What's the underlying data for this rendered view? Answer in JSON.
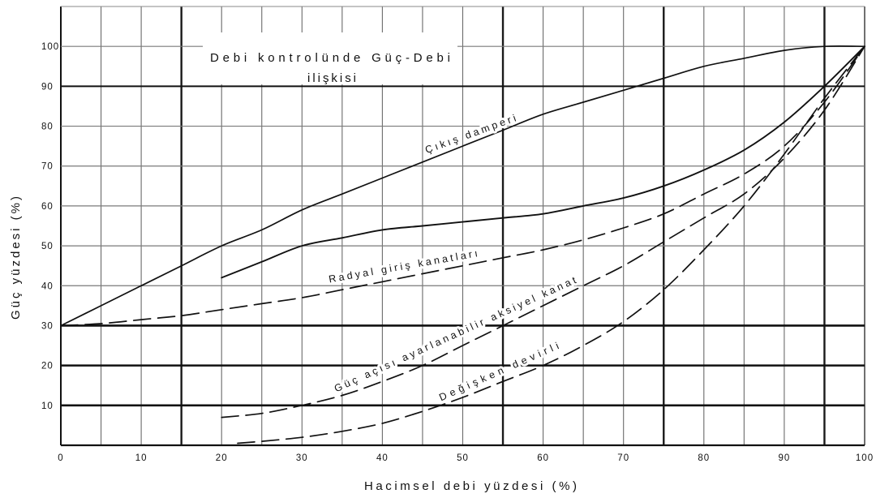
{
  "chart_data": {
    "type": "line",
    "title": [
      "Debi kontrolünde Güç-Debi",
      "ilişkisi"
    ],
    "xlabel": "Hacimsel debi yüzdesi (%)",
    "ylabel": "Güç yüzdesi (%)",
    "xlim": [
      0,
      100
    ],
    "ylim": [
      0,
      110
    ],
    "x_ticks": [
      0,
      10,
      20,
      30,
      40,
      50,
      60,
      70,
      80,
      90,
      100
    ],
    "y_ticks": [
      10,
      20,
      30,
      40,
      50,
      60,
      70,
      80,
      90,
      100
    ],
    "grid": true,
    "line_color": "#111111",
    "series": [
      {
        "name": "Çıkış damperi",
        "dashed": false,
        "x": [
          0,
          5,
          10,
          15,
          20,
          25,
          30,
          35,
          40,
          45,
          50,
          55,
          60,
          65,
          70,
          75,
          80,
          85,
          90,
          95,
          100
        ],
        "y": [
          30,
          35,
          40,
          45,
          50,
          54,
          59,
          63,
          67,
          71,
          75,
          79,
          83,
          86,
          89,
          92,
          95,
          97,
          99,
          100,
          100
        ]
      },
      {
        "dashed": false,
        "x": [
          20,
          25,
          30,
          35,
          40,
          45,
          50,
          55,
          60,
          65,
          70,
          75,
          80,
          85,
          90,
          95,
          100
        ],
        "y": [
          42,
          46,
          50,
          52,
          54,
          55,
          56,
          57,
          58,
          60,
          62,
          65,
          69,
          74,
          81,
          90,
          100
        ]
      },
      {
        "name": "Radyal giriş kanatları",
        "dashed": true,
        "x": [
          0,
          5,
          10,
          15,
          20,
          25,
          30,
          35,
          40,
          45,
          50,
          55,
          60,
          65,
          70,
          75,
          80,
          85,
          90,
          95,
          100
        ],
        "y": [
          30,
          30.5,
          31.5,
          32.5,
          34,
          35.5,
          37,
          39,
          41,
          43,
          45,
          47,
          49,
          51.5,
          54.5,
          58,
          63,
          68,
          75,
          86,
          100
        ]
      },
      {
        "name": "Güç açısı ayarlanabilir aksiyel kanat",
        "dashed": true,
        "x": [
          20,
          25,
          30,
          35,
          40,
          45,
          50,
          55,
          60,
          65,
          70,
          75,
          80,
          85,
          90,
          95,
          100
        ],
        "y": [
          7,
          8,
          10,
          12.5,
          16,
          20,
          25,
          30,
          35,
          40,
          45,
          51,
          57,
          63,
          72,
          84,
          100
        ]
      },
      {
        "name": "Değişken devirli",
        "dashed": true,
        "x": [
          22,
          25,
          30,
          35,
          40,
          45,
          50,
          55,
          60,
          65,
          70,
          75,
          80,
          85,
          90,
          95,
          100
        ],
        "y": [
          0.5,
          1,
          2,
          3.5,
          5.5,
          8.5,
          12,
          16,
          20,
          25,
          31,
          39,
          49,
          60,
          73,
          87,
          100
        ]
      }
    ]
  }
}
